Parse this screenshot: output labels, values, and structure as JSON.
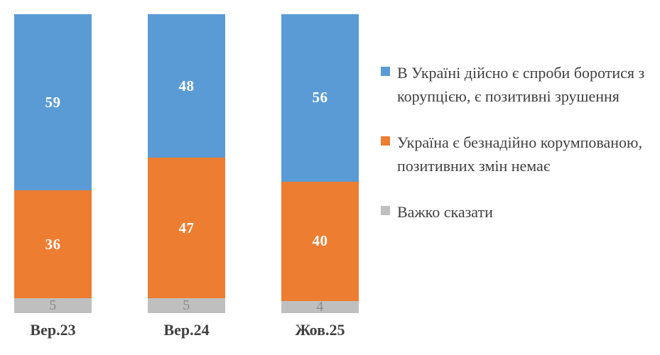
{
  "chart_data": {
    "type": "bar",
    "stacked": true,
    "orientation": "vertical",
    "grid": false,
    "legend_position": "right",
    "ylim": [
      0,
      100
    ],
    "categories": [
      "Вер.23",
      "Вер.24",
      "Жов.25"
    ],
    "series": [
      {
        "key": "fight-attempts",
        "name": "В Україні дійсно є спроби боротися з корупцією, є позитивні зрушення",
        "color": "#5B9BD5",
        "label_color": "#FFFFFF",
        "values": [
          59,
          48,
          56
        ]
      },
      {
        "key": "hopelessly-corrupt",
        "name": "Україна є безнадійно корумпованою, позитивних змін немає",
        "color": "#ED7D31",
        "label_color": "#FFFFFF",
        "values": [
          36,
          47,
          40
        ]
      },
      {
        "key": "hard-to-say",
        "name": "Важко сказати",
        "color": "#BFBFBF",
        "label_color": "#8A8A8A",
        "values": [
          5,
          5,
          4
        ]
      }
    ],
    "text_colors": {
      "category_label": "#404040",
      "legend_text": "#3F3F3F"
    }
  }
}
